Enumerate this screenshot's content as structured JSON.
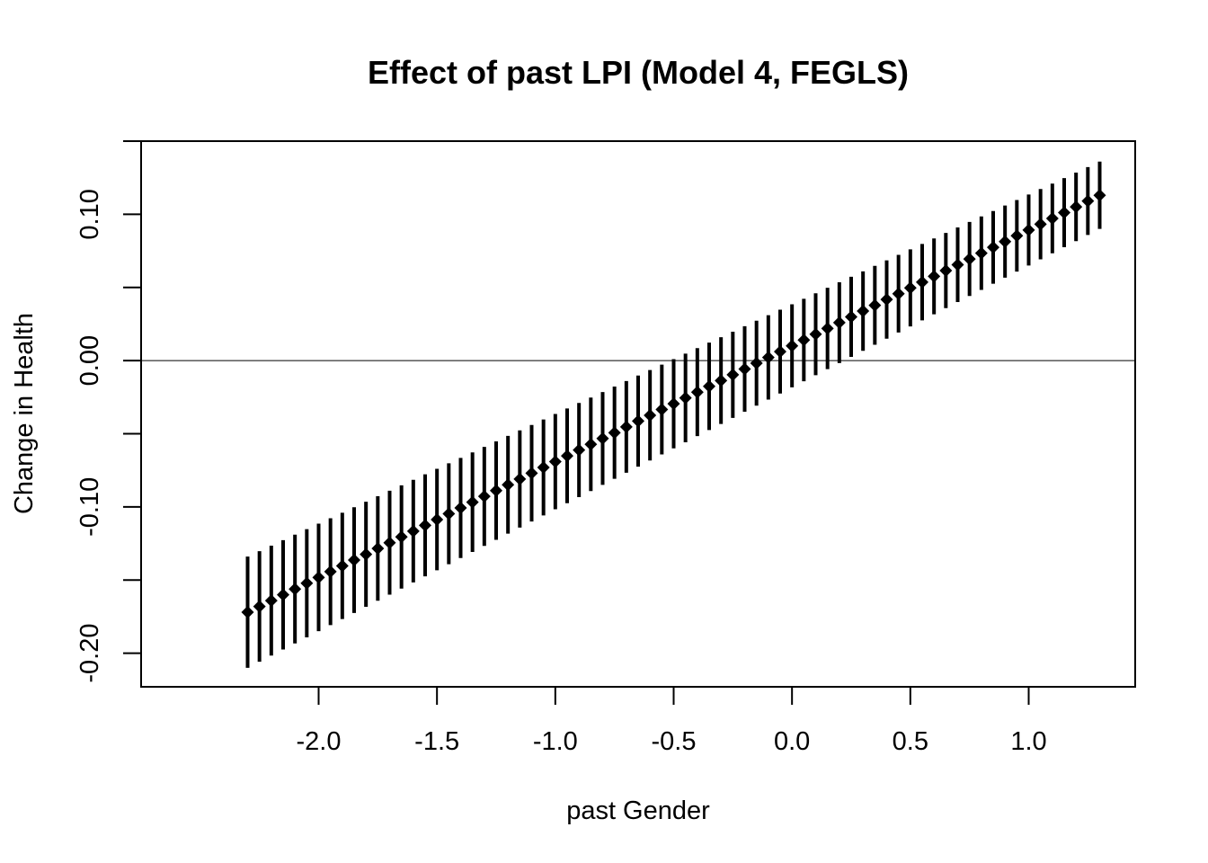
{
  "chart_data": {
    "type": "scatter",
    "subtype": "point-estimates-with-confidence-intervals",
    "title": "Effect of past LPI (Model 4, FEGLS)",
    "xlabel": "past Gender",
    "ylabel": "Change in Health",
    "xlim": [
      -2.75,
      1.45
    ],
    "ylim": [
      -0.223,
      0.15
    ],
    "x_ticks": [
      -2.0,
      -1.5,
      -1.0,
      -0.5,
      0.0,
      0.5,
      1.0
    ],
    "x_tick_labels": [
      "-2.0",
      "-1.5",
      "-1.0",
      "-0.5",
      "0.0",
      "0.5",
      "1.0"
    ],
    "y_ticks_major": [
      -0.2,
      -0.1,
      0.0,
      0.1
    ],
    "y_tick_labels": [
      "-0.20",
      "-0.10",
      "0.00",
      "0.10"
    ],
    "y_ticks_minor": [
      -0.15,
      -0.05,
      0.05
    ],
    "reference_line_y": 0.0,
    "grid": false,
    "legend": "none",
    "marker": "diamond",
    "color": "#000000",
    "estimate": {
      "x_start": -2.3,
      "x_end": 1.3,
      "x_step": 0.05,
      "y_start": -0.172,
      "y_end": 0.113
    },
    "ci_lower": {
      "y_start": -0.21,
      "y_end": 0.09
    },
    "ci_upper": {
      "y_start": -0.134,
      "y_end": 0.136
    }
  }
}
